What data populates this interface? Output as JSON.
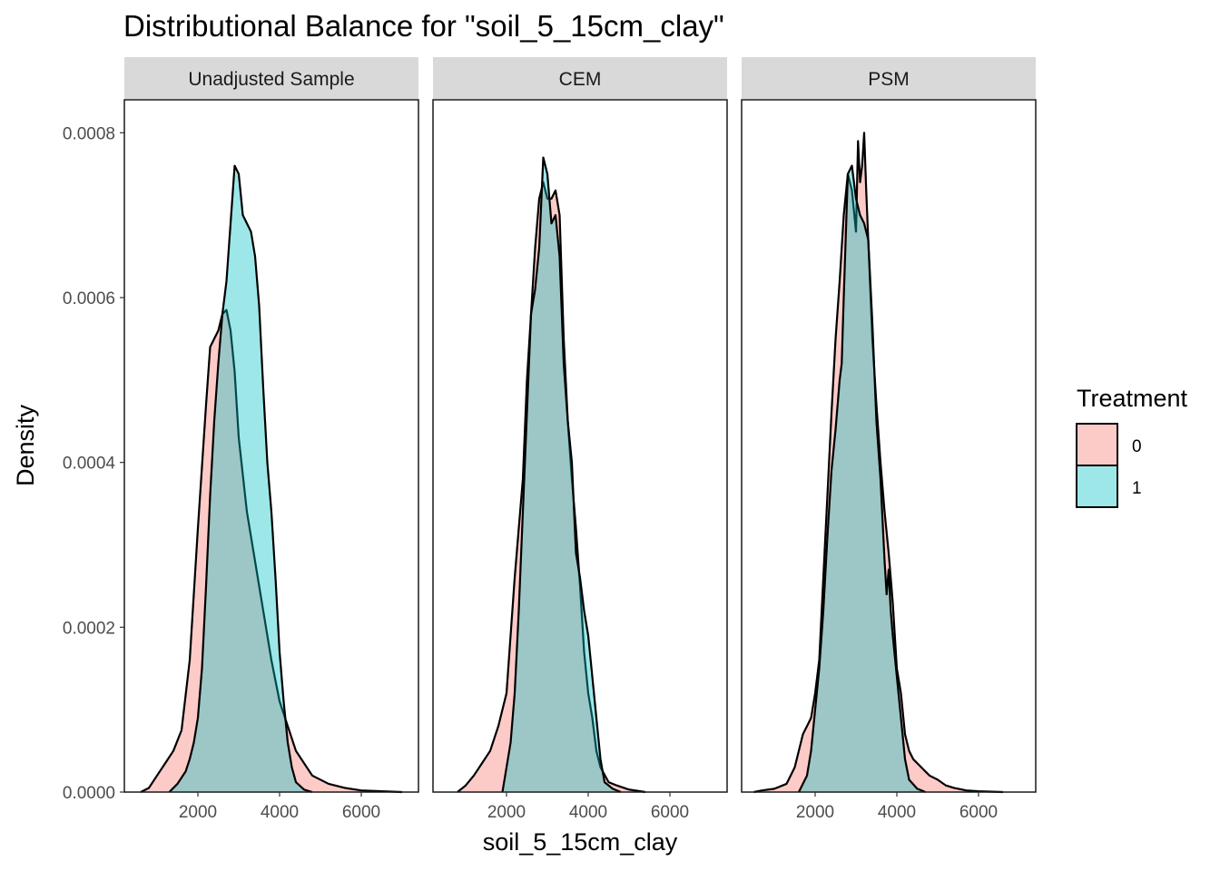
{
  "chart_data": {
    "type": "area",
    "title": "Distributional Balance for \"soil_5_15cm_clay\"",
    "xlabel": "soil_5_15cm_clay",
    "ylabel": "Density",
    "xlim": [
      200,
      7400
    ],
    "ylim": [
      0,
      0.00084
    ],
    "x_ticks": [
      2000,
      4000,
      6000
    ],
    "x_tick_labels": [
      "2000",
      "4000",
      "6000"
    ],
    "y_ticks": [
      0,
      0.0002,
      0.0004,
      0.0006,
      0.0008
    ],
    "y_tick_labels": [
      "0.0000",
      "0.0002",
      "0.0004",
      "0.0006",
      "0.0008"
    ],
    "grid": false,
    "legend": {
      "title": "Treatment",
      "placement": "right",
      "entries": [
        {
          "label": "0",
          "color": "#F8766D"
        },
        {
          "label": "1",
          "color": "#00BFC4"
        }
      ]
    },
    "panels": [
      {
        "label": "Unadjusted Sample",
        "series": [
          {
            "name": "0",
            "color": "#F8766D",
            "points": [
              [
                600,
                0
              ],
              [
                800,
                5e-06
              ],
              [
                1000,
                2e-05
              ],
              [
                1200,
                3.5e-05
              ],
              [
                1400,
                5e-05
              ],
              [
                1600,
                7.5e-05
              ],
              [
                1800,
                0.00016
              ],
              [
                2000,
                0.00032
              ],
              [
                2200,
                0.00047
              ],
              [
                2300,
                0.00054
              ],
              [
                2500,
                0.00056
              ],
              [
                2600,
                0.00058
              ],
              [
                2700,
                0.000585
              ],
              [
                2800,
                0.00056
              ],
              [
                2900,
                0.00051
              ],
              [
                3000,
                0.00043
              ],
              [
                3200,
                0.00034
              ],
              [
                3400,
                0.00028
              ],
              [
                3600,
                0.00022
              ],
              [
                3800,
                0.00016
              ],
              [
                4000,
                0.00011
              ],
              [
                4200,
                8e-05
              ],
              [
                4400,
                5e-05
              ],
              [
                4600,
                3.5e-05
              ],
              [
                4800,
                2e-05
              ],
              [
                5200,
                1e-05
              ],
              [
                5600,
                5e-06
              ],
              [
                6000,
                2e-06
              ],
              [
                7000,
                0
              ]
            ]
          },
          {
            "name": "1",
            "color": "#00BFC4",
            "points": [
              [
                1300,
                0
              ],
              [
                1500,
                1e-05
              ],
              [
                1700,
                2.5e-05
              ],
              [
                1800,
                4e-05
              ],
              [
                1900,
                6e-05
              ],
              [
                2000,
                9e-05
              ],
              [
                2100,
                0.00015
              ],
              [
                2200,
                0.00025
              ],
              [
                2300,
                0.00036
              ],
              [
                2400,
                0.00045
              ],
              [
                2500,
                0.00052
              ],
              [
                2600,
                0.00058
              ],
              [
                2700,
                0.00062
              ],
              [
                2800,
                0.00069
              ],
              [
                2900,
                0.00076
              ],
              [
                3000,
                0.00075
              ],
              [
                3100,
                0.0007
              ],
              [
                3200,
                0.00069
              ],
              [
                3300,
                0.00068
              ],
              [
                3400,
                0.00065
              ],
              [
                3500,
                0.00059
              ],
              [
                3600,
                0.00049
              ],
              [
                3700,
                0.0004
              ],
              [
                3800,
                0.00034
              ],
              [
                3900,
                0.00026
              ],
              [
                4000,
                0.00017
              ],
              [
                4100,
                0.00011
              ],
              [
                4200,
                6e-05
              ],
              [
                4300,
                3e-05
              ],
              [
                4400,
                1.2e-05
              ],
              [
                4600,
                3e-06
              ],
              [
                4800,
                0
              ]
            ]
          }
        ]
      },
      {
        "label": "CEM",
        "series": [
          {
            "name": "0",
            "color": "#F8766D",
            "points": [
              [
                800,
                0
              ],
              [
                1000,
                8e-06
              ],
              [
                1200,
                2e-05
              ],
              [
                1400,
                3.5e-05
              ],
              [
                1600,
                5e-05
              ],
              [
                1800,
                8e-05
              ],
              [
                2000,
                0.00012
              ],
              [
                2200,
                0.00026
              ],
              [
                2400,
                0.00038
              ],
              [
                2500,
                0.0005
              ],
              [
                2600,
                0.00058
              ],
              [
                2700,
                0.00066
              ],
              [
                2800,
                0.00072
              ],
              [
                2900,
                0.00074
              ],
              [
                3000,
                0.00072
              ],
              [
                3100,
                0.00072
              ],
              [
                3200,
                0.00073
              ],
              [
                3300,
                0.0007
              ],
              [
                3400,
                0.00055
              ],
              [
                3500,
                0.00045
              ],
              [
                3600,
                0.00038
              ],
              [
                3700,
                0.00032
              ],
              [
                3800,
                0.00025
              ],
              [
                3900,
                0.00017
              ],
              [
                4000,
                0.00012
              ],
              [
                4100,
                9e-05
              ],
              [
                4200,
                5e-05
              ],
              [
                4300,
                3e-05
              ],
              [
                4500,
                1.2e-05
              ],
              [
                4700,
                8e-06
              ],
              [
                5000,
                3e-06
              ],
              [
                5400,
                0
              ]
            ]
          },
          {
            "name": "1",
            "color": "#00BFC4",
            "points": [
              [
                1900,
                0
              ],
              [
                2000,
                3e-05
              ],
              [
                2100,
                6e-05
              ],
              [
                2200,
                0.00012
              ],
              [
                2300,
                0.00022
              ],
              [
                2400,
                0.00034
              ],
              [
                2500,
                0.00046
              ],
              [
                2600,
                0.00058
              ],
              [
                2700,
                0.00061
              ],
              [
                2800,
                0.00066
              ],
              [
                2900,
                0.00077
              ],
              [
                3000,
                0.00075
              ],
              [
                3100,
                0.00069
              ],
              [
                3200,
                0.0007
              ],
              [
                3300,
                0.00065
              ],
              [
                3400,
                0.00052
              ],
              [
                3500,
                0.00045
              ],
              [
                3600,
                0.0004
              ],
              [
                3700,
                0.00029
              ],
              [
                3800,
                0.00026
              ],
              [
                3900,
                0.00022
              ],
              [
                4000,
                0.00019
              ],
              [
                4100,
                0.00014
              ],
              [
                4200,
                9e-05
              ],
              [
                4300,
                4e-05
              ],
              [
                4400,
                1.2e-05
              ],
              [
                4600,
                4e-06
              ],
              [
                4800,
                0
              ]
            ]
          }
        ]
      },
      {
        "label": "PSM",
        "series": [
          {
            "name": "0",
            "color": "#F8766D",
            "points": [
              [
                500,
                0
              ],
              [
                700,
                2e-06
              ],
              [
                1000,
                4e-06
              ],
              [
                1300,
                1e-05
              ],
              [
                1500,
                3e-05
              ],
              [
                1700,
                7e-05
              ],
              [
                1900,
                9e-05
              ],
              [
                2000,
                0.00012
              ],
              [
                2100,
                0.00016
              ],
              [
                2200,
                0.00026
              ],
              [
                2300,
                0.00036
              ],
              [
                2400,
                0.00046
              ],
              [
                2500,
                0.00055
              ],
              [
                2600,
                0.00062
              ],
              [
                2700,
                0.0007
              ],
              [
                2800,
                0.00075
              ],
              [
                2900,
                0.00073
              ],
              [
                3000,
                0.00068
              ],
              [
                3050,
                0.00079
              ],
              [
                3100,
                0.00074
              ],
              [
                3150,
                0.00076
              ],
              [
                3200,
                0.0008
              ],
              [
                3250,
                0.00073
              ],
              [
                3300,
                0.00067
              ],
              [
                3400,
                0.00055
              ],
              [
                3500,
                0.00047
              ],
              [
                3600,
                0.0004
              ],
              [
                3700,
                0.00034
              ],
              [
                3800,
                0.00029
              ],
              [
                3900,
                0.00023
              ],
              [
                4000,
                0.00015
              ],
              [
                4100,
                0.00012
              ],
              [
                4200,
                7e-05
              ],
              [
                4300,
                5e-05
              ],
              [
                4400,
                4e-05
              ],
              [
                4600,
                3e-05
              ],
              [
                4800,
                2e-05
              ],
              [
                5000,
                1.5e-05
              ],
              [
                5200,
                8e-06
              ],
              [
                5400,
                5e-06
              ],
              [
                5700,
                2e-06
              ],
              [
                6000,
                1e-06
              ],
              [
                6600,
                0
              ]
            ]
          },
          {
            "name": "1",
            "color": "#00BFC4",
            "points": [
              [
                1600,
                0
              ],
              [
                1800,
                2e-05
              ],
              [
                1900,
                5e-05
              ],
              [
                2000,
                0.0001
              ],
              [
                2100,
                0.00015
              ],
              [
                2200,
                0.00022
              ],
              [
                2300,
                0.00031
              ],
              [
                2400,
                0.00039
              ],
              [
                2500,
                0.00044
              ],
              [
                2600,
                0.0005
              ],
              [
                2650,
                0.00052
              ],
              [
                2700,
                0.0006
              ],
              [
                2800,
                0.00075
              ],
              [
                2900,
                0.00076
              ],
              [
                3000,
                0.00072
              ],
              [
                3100,
                0.0007
              ],
              [
                3200,
                0.00069
              ],
              [
                3300,
                0.00067
              ],
              [
                3400,
                0.00057
              ],
              [
                3500,
                0.00045
              ],
              [
                3600,
                0.00038
              ],
              [
                3700,
                0.00028
              ],
              [
                3750,
                0.00024
              ],
              [
                3800,
                0.00027
              ],
              [
                3850,
                0.00022
              ],
              [
                3900,
                0.00019
              ],
              [
                4000,
                0.00014
              ],
              [
                4100,
                9e-05
              ],
              [
                4200,
                4e-05
              ],
              [
                4300,
                1.5e-05
              ],
              [
                4500,
                4e-06
              ],
              [
                4700,
                0
              ]
            ]
          }
        ]
      }
    ]
  }
}
